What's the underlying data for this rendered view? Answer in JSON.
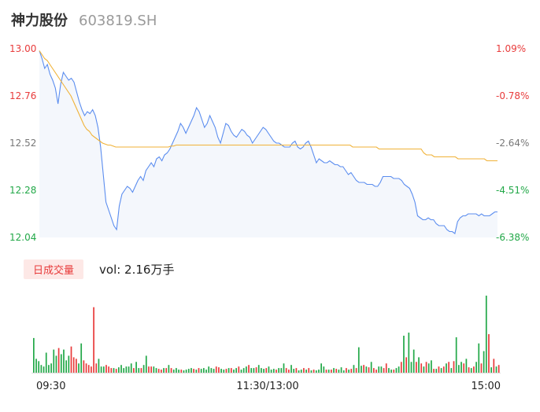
{
  "header": {
    "name": "神力股份",
    "code": "603819.SH"
  },
  "legend": {
    "badge": "日成交量",
    "vol_text": "vol: 2.16万手"
  },
  "colors": {
    "price": "#5b8def",
    "avg": "#f0b237",
    "up": "#e83b3b",
    "down": "#22a848",
    "fill": "#f4f7fc"
  },
  "chart_data": [
    {
      "type": "line",
      "y_ticks_left": [
        "13.00",
        "12.76",
        "12.52",
        "12.28",
        "12.04"
      ],
      "y_ticks_right": [
        "1.09%",
        "-0.78%",
        "-2.64%",
        "-4.51%",
        "-6.38%"
      ],
      "ylim": [
        12.04,
        13.0
      ],
      "series": [
        {
          "values": [
            12.99,
            12.95,
            12.9,
            12.92,
            12.87,
            12.84,
            12.8,
            12.72,
            12.82,
            12.88,
            12.86,
            12.84,
            12.85,
            12.83,
            12.78,
            12.73,
            12.69,
            12.66,
            12.68,
            12.67,
            12.69,
            12.66,
            12.6,
            12.5,
            12.36,
            12.22,
            12.18,
            12.14,
            12.1,
            12.08,
            12.2,
            12.26,
            12.28,
            12.3,
            12.29,
            12.27,
            12.3,
            12.33,
            12.35,
            12.33,
            12.38,
            12.4,
            12.42,
            12.4,
            12.44,
            12.45,
            12.43,
            12.46,
            12.47,
            12.49,
            12.52,
            12.55,
            12.58,
            12.62,
            12.6,
            12.57,
            12.6,
            12.63,
            12.66,
            12.7,
            12.68,
            12.64,
            12.6,
            12.62,
            12.66,
            12.63,
            12.6,
            12.55,
            12.52,
            12.57,
            12.62,
            12.61,
            12.58,
            12.56,
            12.55,
            12.57,
            12.59,
            12.58,
            12.56,
            12.55,
            12.52,
            12.54,
            12.56,
            12.58,
            12.6,
            12.59,
            12.57,
            12.55,
            12.53,
            12.52,
            12.52,
            12.51,
            12.5,
            12.5,
            12.5,
            12.52,
            12.53,
            12.5,
            12.49,
            12.5,
            12.52,
            12.53,
            12.5,
            12.46,
            12.42,
            12.44,
            12.43,
            12.42,
            12.42,
            12.43,
            12.42,
            12.41,
            12.41,
            12.4,
            12.4,
            12.38,
            12.36,
            12.37,
            12.35,
            12.33,
            12.32,
            12.32,
            12.32,
            12.31,
            12.31,
            12.31,
            12.3,
            12.3,
            12.32,
            12.35,
            12.35,
            12.35,
            12.35,
            12.34,
            12.34,
            12.34,
            12.33,
            12.31,
            12.3,
            12.29,
            12.26,
            12.22,
            12.15,
            12.14,
            12.13,
            12.13,
            12.14,
            12.13,
            12.13,
            12.11,
            12.1,
            12.1,
            12.1,
            12.08,
            12.07,
            12.07,
            12.06,
            12.12,
            12.14,
            12.15,
            12.15,
            12.16,
            12.16,
            12.16,
            12.16,
            12.15,
            12.16,
            12.15,
            12.15,
            12.15,
            12.16,
            12.17,
            12.17
          ],
          "color_key": "price"
        },
        {
          "values": [
            12.99,
            12.97,
            12.95,
            12.94,
            12.92,
            12.9,
            12.88,
            12.86,
            12.84,
            12.82,
            12.8,
            12.78,
            12.76,
            12.73,
            12.7,
            12.67,
            12.64,
            12.61,
            12.59,
            12.58,
            12.56,
            12.55,
            12.54,
            12.53,
            12.52,
            12.515,
            12.51,
            12.51,
            12.505,
            12.5,
            12.5,
            12.5,
            12.5,
            12.5,
            12.5,
            12.5,
            12.5,
            12.5,
            12.5,
            12.5,
            12.5,
            12.5,
            12.5,
            12.5,
            12.5,
            12.5,
            12.5,
            12.5,
            12.5,
            12.5,
            12.505,
            12.505,
            12.51,
            12.51,
            12.51,
            12.51,
            12.51,
            12.51,
            12.51,
            12.51,
            12.51,
            12.51,
            12.51,
            12.51,
            12.51,
            12.51,
            12.51,
            12.51,
            12.51,
            12.51,
            12.51,
            12.51,
            12.51,
            12.51,
            12.51,
            12.51,
            12.51,
            12.51,
            12.51,
            12.51,
            12.51,
            12.51,
            12.51,
            12.51,
            12.51,
            12.51,
            12.51,
            12.51,
            12.51,
            12.51,
            12.51,
            12.51,
            12.51,
            12.51,
            12.51,
            12.51,
            12.51,
            12.51,
            12.51,
            12.51,
            12.51,
            12.51,
            12.51,
            12.51,
            12.51,
            12.51,
            12.51,
            12.51,
            12.51,
            12.51,
            12.51,
            12.51,
            12.51,
            12.51,
            12.51,
            12.51,
            12.51,
            12.51,
            12.51,
            12.5,
            12.5,
            12.5,
            12.5,
            12.5,
            12.5,
            12.5,
            12.5,
            12.5,
            12.5,
            12.49,
            12.49,
            12.49,
            12.49,
            12.49,
            12.49,
            12.49,
            12.49,
            12.49,
            12.49,
            12.49,
            12.49,
            12.49,
            12.49,
            12.49,
            12.49,
            12.49,
            12.47,
            12.46,
            12.46,
            12.46,
            12.45,
            12.45,
            12.45,
            12.45,
            12.45,
            12.45,
            12.45,
            12.45,
            12.45,
            12.44,
            12.44,
            12.44,
            12.44,
            12.44,
            12.44,
            12.44,
            12.44,
            12.44,
            12.44,
            12.44,
            12.43,
            12.43,
            12.43,
            12.43,
            12.43
          ],
          "color_key": "avg"
        }
      ]
    },
    {
      "type": "bar",
      "x_ticks": [
        "09:30",
        "11:30/13:00",
        "15:00"
      ],
      "ylim": [
        0,
        100
      ],
      "values": [
        45,
        18,
        15,
        10,
        8,
        26,
        10,
        12,
        30,
        22,
        32,
        24,
        30,
        16,
        22,
        34,
        20,
        18,
        12,
        38,
        16,
        12,
        10,
        8,
        85,
        12,
        18,
        8,
        8,
        10,
        8,
        6,
        6,
        5,
        7,
        10,
        6,
        8,
        8,
        12,
        6,
        14,
        6,
        6,
        10,
        22,
        8,
        8,
        8,
        6,
        5,
        4,
        6,
        6,
        10,
        6,
        4,
        6,
        4,
        4,
        3,
        4,
        5,
        6,
        5,
        4,
        6,
        5,
        6,
        4,
        8,
        6,
        5,
        8,
        7,
        5,
        4,
        5,
        6,
        6,
        4,
        6,
        8,
        4,
        6,
        8,
        10,
        6,
        6,
        7,
        10,
        6,
        5,
        6,
        8,
        4,
        5,
        4,
        6,
        6,
        12,
        6,
        4,
        10,
        5,
        6,
        3,
        4,
        6,
        4,
        6,
        3,
        4,
        3,
        4,
        12,
        8,
        4,
        4,
        4,
        6,
        5,
        4,
        7,
        3,
        6,
        4,
        5,
        10,
        6,
        33,
        9,
        10,
        8,
        7,
        14,
        6,
        4,
        8,
        8,
        6,
        12,
        6,
        4,
        4,
        6,
        8,
        14,
        48,
        20,
        52,
        14,
        30,
        14,
        20,
        12,
        8,
        14,
        12,
        16,
        5,
        5,
        8,
        6,
        8,
        12,
        14,
        6,
        15,
        46,
        10,
        14,
        12,
        18,
        7,
        6,
        8,
        14,
        38,
        12,
        28,
        100,
        50,
        7,
        18,
        8,
        10
      ],
      "up": [
        0,
        0,
        0,
        0,
        0,
        0,
        0,
        0,
        0,
        0,
        1,
        0,
        0,
        0,
        0,
        1,
        1,
        1,
        0,
        0,
        1,
        1,
        1,
        1,
        1,
        1,
        0,
        0,
        0,
        1,
        1,
        1,
        0,
        1,
        0,
        0,
        0,
        0,
        0,
        0,
        1,
        0,
        0,
        1,
        0,
        0,
        1,
        1,
        0,
        0,
        1,
        1,
        0,
        1,
        0,
        1,
        0,
        0,
        0,
        1,
        0,
        0,
        0,
        0,
        1,
        0,
        1,
        0,
        0,
        0,
        0,
        0,
        0,
        1,
        1,
        0,
        0,
        1,
        0,
        1,
        0,
        0,
        1,
        0,
        0,
        0,
        1,
        0,
        0,
        1,
        0,
        0,
        0,
        1,
        0,
        0,
        0,
        1,
        0,
        0,
        0,
        1,
        1,
        0,
        0,
        1,
        0,
        0,
        1,
        0,
        1,
        0,
        1,
        0,
        0,
        0,
        0,
        1,
        0,
        1,
        0,
        1,
        0,
        0,
        0,
        1,
        0,
        1,
        0,
        1,
        0,
        0,
        1,
        0,
        1,
        0,
        1,
        1,
        0,
        0,
        1,
        1,
        0,
        0,
        1,
        0,
        0,
        1,
        0,
        1,
        0,
        0,
        0,
        1,
        0,
        1,
        0,
        1,
        0,
        0,
        1,
        0,
        1,
        0,
        1,
        0,
        1,
        0,
        1,
        0,
        0,
        0,
        1,
        0,
        1,
        0,
        1,
        0,
        0,
        1,
        0,
        0,
        1,
        0,
        1,
        0,
        1
      ]
    }
  ]
}
